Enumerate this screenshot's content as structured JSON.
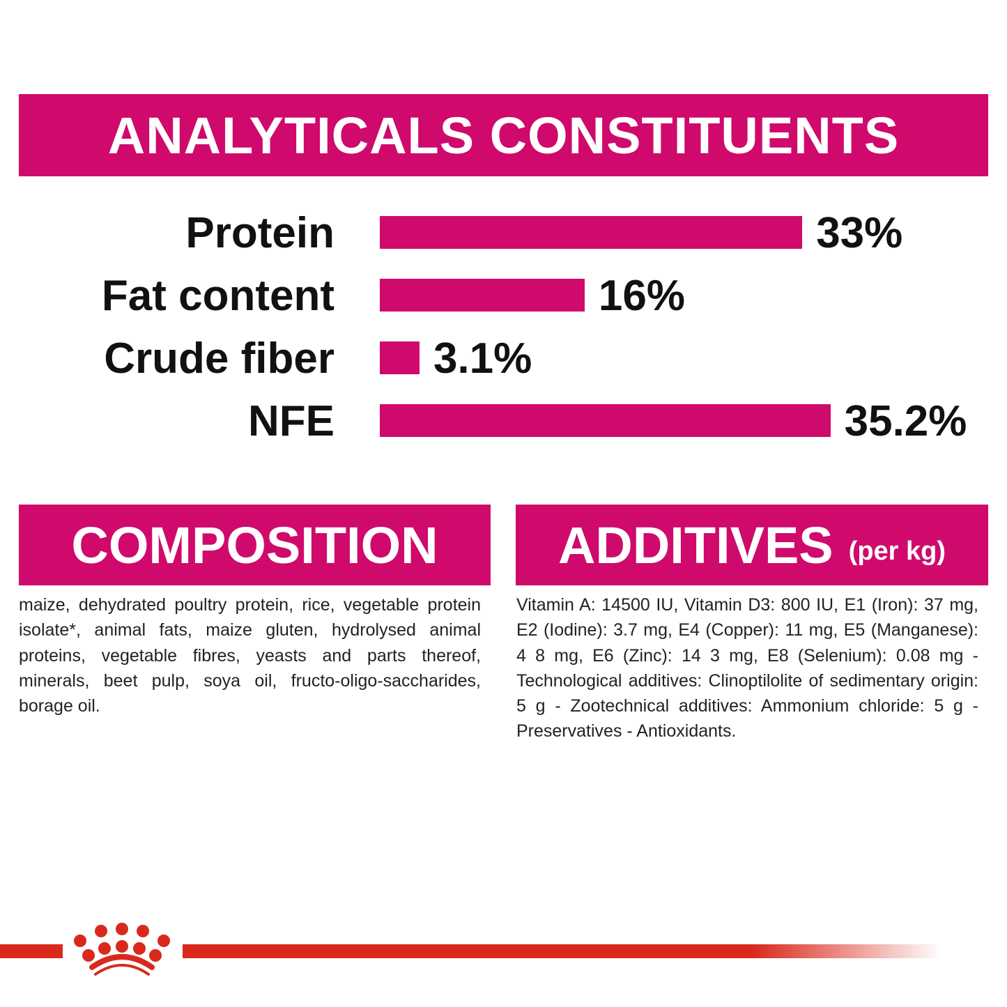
{
  "header": {
    "title": "ANALYTICALS CONSTITUENTS"
  },
  "chart_data": {
    "type": "bar",
    "orientation": "horizontal",
    "title": "ANALYTICALS CONSTITUENTS",
    "categories": [
      "Protein",
      "Fat content",
      "Crude fiber",
      "NFE"
    ],
    "values": [
      33,
      16,
      3.1,
      35.2
    ],
    "value_labels": [
      "33%",
      "16%",
      "3.1%",
      "35.2%"
    ],
    "unit": "%",
    "grid": false,
    "bar_color": "#cf0a6c"
  },
  "composition": {
    "title": "COMPOSITION",
    "text": "maize, dehydrated poultry protein, rice, vegetable protein isolate*, animal fats, maize gluten, hydrolysed animal proteins, vegetable fibres, yeasts and parts thereof, minerals, beet pulp, soya oil, fructo-oligo-saccharides, borage oil."
  },
  "additives": {
    "title": "ADDITIVES",
    "subtitle": "(per kg)",
    "text": "Vitamin A: 14500 IU, Vitamin D3: 800 IU, E1 (Iron): 37 mg, E2 (Iodine): 3.7 mg, E4 (Copper): 11 mg, E5 (Manganese): 4 8 mg, E6 (Zinc): 14 3 mg, E8 (Selenium): 0.08 mg -Technological additives: Clinoptilolite of sedimentary origin: 5 g - Zootechnical additives: Ammonium chloride: 5 g - Preservatives - Antioxidants."
  },
  "colors": {
    "accent": "#cf0a6c",
    "brand_red": "#d9291c"
  },
  "logo": {
    "icon": "royal-canin-crown-icon"
  }
}
